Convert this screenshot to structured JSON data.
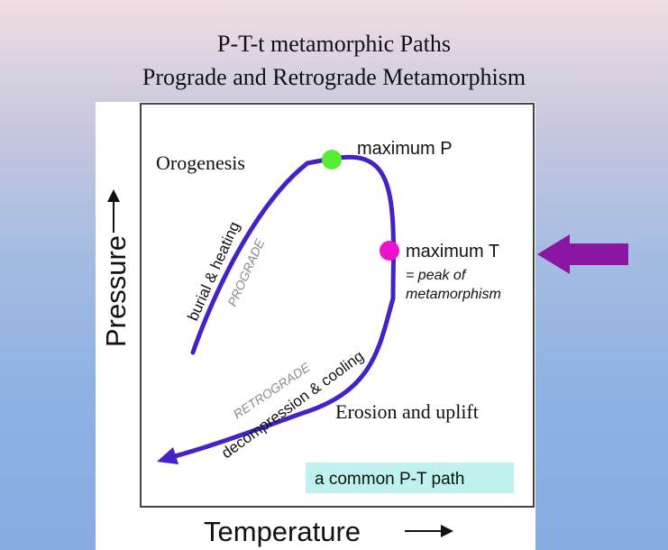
{
  "title": {
    "line1": "P-T-t metamorphic Paths",
    "line2": "Prograde and Retrograde Metamorphism"
  },
  "diagram": {
    "y_axis_label": "Pressure",
    "x_axis_label": "Temperature",
    "labels": {
      "orogenesis": "Orogenesis",
      "max_p": "maximum P",
      "max_t": "maximum T",
      "peak_line1": "= peak of",
      "peak_line2": "metamorphism",
      "burial": "burial & heating",
      "prograde": "PROGRADE",
      "retrograde": "RETROGRADE",
      "decompression": "decompression & cooling",
      "erosion": "Erosion and uplift",
      "common_path": "a common P-T path"
    },
    "colors": {
      "path": "#4422c8",
      "max_p_dot": "#55ee33",
      "max_t_dot": "#ee11cc",
      "box": "#bff2ee",
      "pointer_arrow": "#8a16a3",
      "faded_text": "#8a8a8a"
    }
  }
}
